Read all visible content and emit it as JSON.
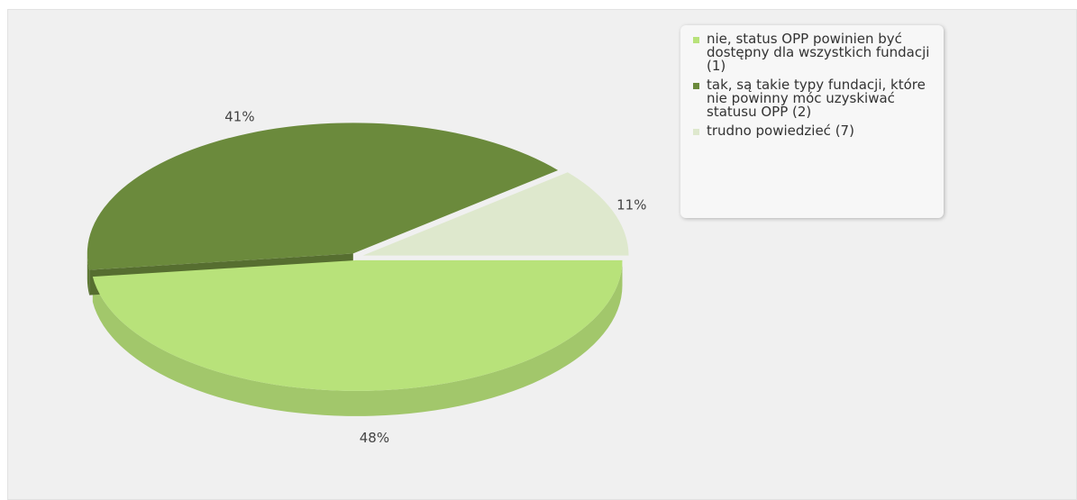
{
  "chart_data": {
    "type": "pie",
    "categories": [
      "nie, status OPP powinien być dostępny dla wszystkich fundacji (1)",
      "tak, są takie typy fundacji, które nie powinny móc uzyskiwać statusu OPP (2)",
      "trudno powiedzieć (7)"
    ],
    "values": [
      48,
      41,
      11
    ],
    "value_labels": [
      "48%",
      "41%",
      "11%"
    ],
    "colors": [
      "#b8e27a",
      "#6b8a3c",
      "#dee8cd"
    ]
  }
}
